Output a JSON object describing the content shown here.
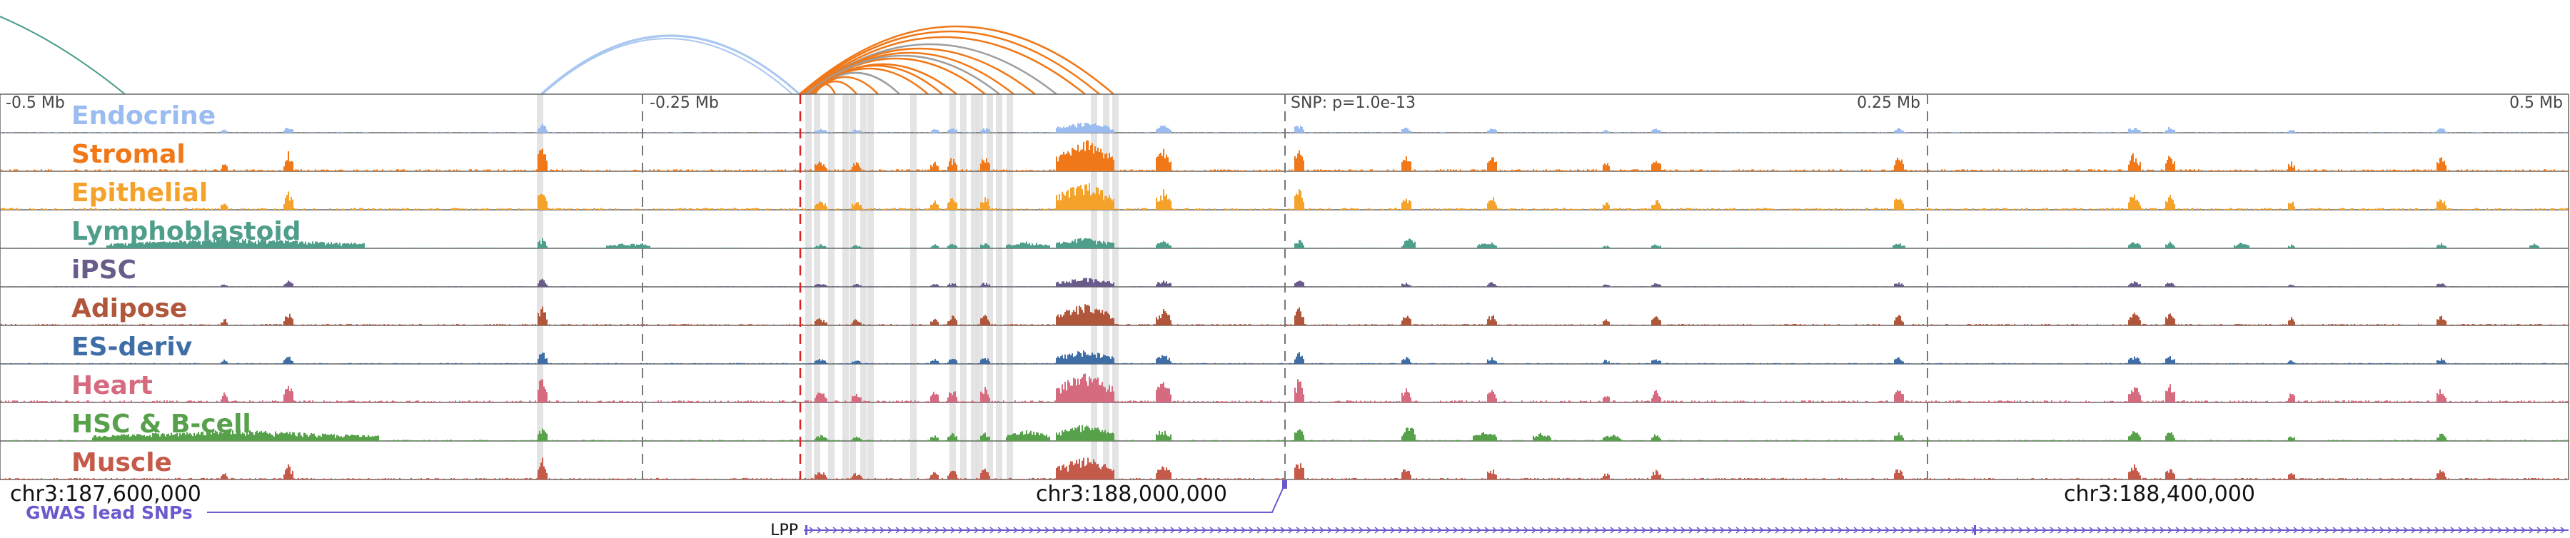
{
  "scale_labels": [
    "-0.5 Mb",
    "-0.25 Mb",
    "SNP: p=1.0e-13",
    "0.25 Mb",
    "0.5 Mb"
  ],
  "tracks": [
    {
      "name": "Endocrine",
      "color": "#9bbcf0"
    },
    {
      "name": "Stromal",
      "color": "#f07818"
    },
    {
      "name": "Epithelial",
      "color": "#f4a22a"
    },
    {
      "name": "Lymphoblastoid",
      "color": "#4f9e8c"
    },
    {
      "name": "iPSC",
      "color": "#6a5c8a"
    },
    {
      "name": "Adipose",
      "color": "#b0563a"
    },
    {
      "name": "ES-deriv",
      "color": "#3f6ea6"
    },
    {
      "name": "Heart",
      "color": "#d66a7f"
    },
    {
      "name": "HSC & B-cell",
      "color": "#56a14a"
    },
    {
      "name": "Muscle",
      "color": "#c55a4a"
    }
  ],
  "coordinates": [
    "chr3:187,600,000",
    "chr3:188,000,000",
    "chr3:188,400,000"
  ],
  "gwas_label": "GWAS lead SNPs",
  "gwas_color": "#6a5acd",
  "gene_label": "LPP",
  "arc_colors": {
    "teal": "#4a9e8c",
    "blue": "#a9c7f0",
    "orange": "#f07818",
    "gray": "#9e9e9e"
  },
  "highlight_color": "#d9d9d9",
  "snp_line_color": "#e02020"
}
